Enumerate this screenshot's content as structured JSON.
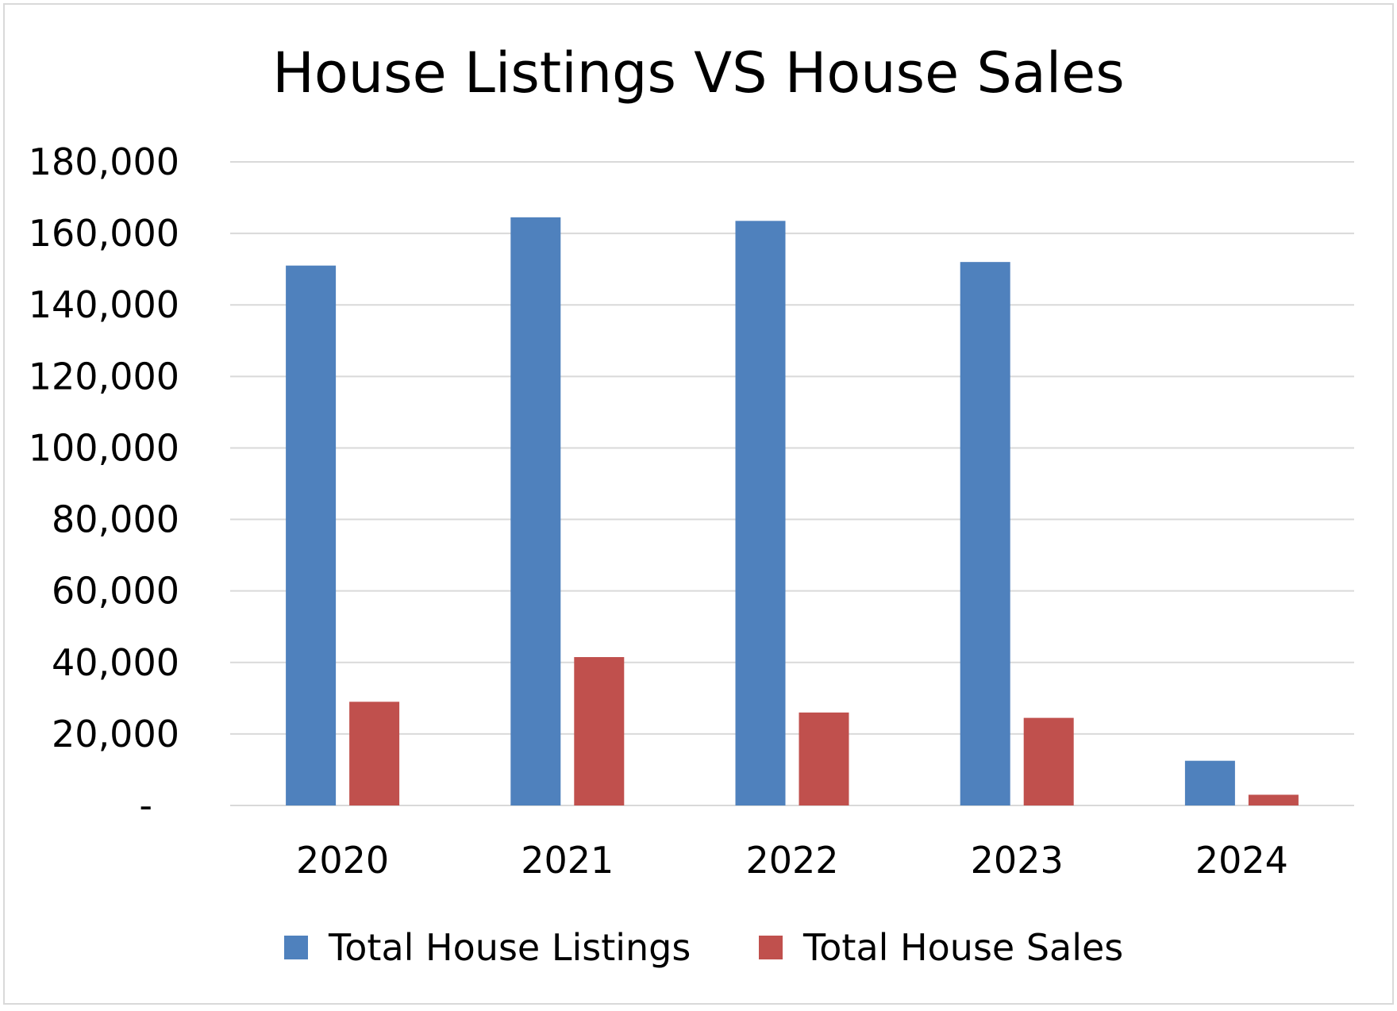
{
  "chart_data": {
    "type": "bar",
    "title": "House Listings VS House Sales",
    "categories": [
      "2020",
      "2021",
      "2022",
      "2023",
      "2024"
    ],
    "series": [
      {
        "name": "Total House Listings",
        "color": "#4f81bd",
        "values": [
          151000,
          164500,
          163500,
          152000,
          12500
        ]
      },
      {
        "name": "Total House Sales",
        "color": "#c0504d",
        "values": [
          29000,
          41500,
          26000,
          24500,
          3000
        ]
      }
    ],
    "ylim": [
      0,
      180000
    ],
    "yticks": [
      0,
      20000,
      40000,
      60000,
      80000,
      100000,
      120000,
      140000,
      160000,
      180000
    ],
    "ytick_labels": [
      "-",
      "20,000",
      "40,000",
      "60,000",
      "80,000",
      "100,000",
      "120,000",
      "140,000",
      "160,000",
      "180,000"
    ],
    "grid": true,
    "gridline_color": "#d9d9d9",
    "legend_position": "bottom"
  }
}
